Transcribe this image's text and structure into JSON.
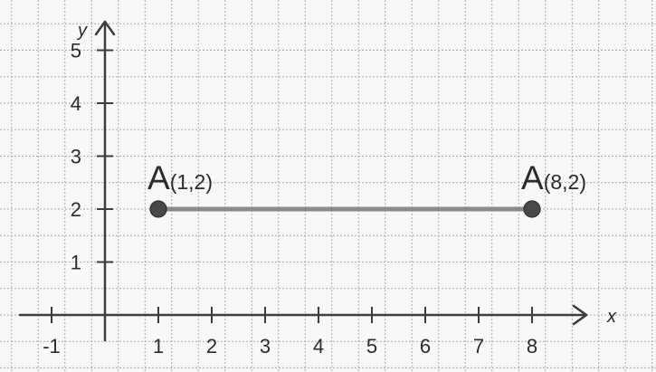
{
  "axes": {
    "x_name": "x",
    "y_name": "y",
    "x_ticks": [
      "-1",
      "1",
      "2",
      "3",
      "4",
      "5",
      "6",
      "7",
      "8"
    ],
    "y_ticks": [
      "1",
      "2",
      "3",
      "4",
      "5"
    ]
  },
  "points": [
    {
      "name": "A",
      "coords": "(1,2)",
      "x": 1,
      "y": 2
    },
    {
      "name": "A",
      "coords": "(8,2)",
      "x": 8,
      "y": 2
    }
  ],
  "segment": {
    "from": [
      1,
      2
    ],
    "to": [
      8,
      2
    ]
  }
}
